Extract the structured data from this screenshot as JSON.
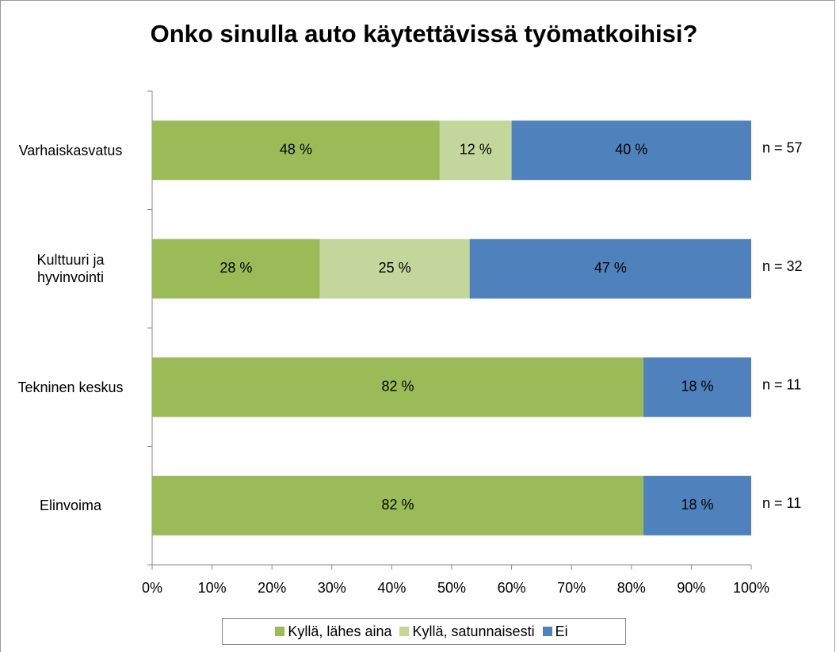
{
  "chart_data": {
    "type": "stacked_bar_horizontal",
    "title": "Onko sinulla auto käytettävissä työmatkoihisi?",
    "categories": [
      "Varhaiskasvatus",
      "Kulttuuri ja hyvinvointi",
      "Tekninen keskus",
      "Elinvoima"
    ],
    "series": [
      {
        "name": "Kyllä, lähes aina",
        "color": "#9bbb59",
        "values": [
          48,
          28,
          82,
          82
        ],
        "value_labels": [
          "48 %",
          "28 %",
          "82 %",
          "82 %"
        ]
      },
      {
        "name": "Kyllä, satunnaisesti",
        "color": "#c3d69b",
        "values": [
          12,
          25,
          0,
          0
        ],
        "value_labels": [
          "12 %",
          "25 %",
          null,
          null
        ]
      },
      {
        "name": "Ei",
        "color": "#4f81bd",
        "values": [
          40,
          47,
          18,
          18
        ],
        "value_labels": [
          "40 %",
          "47 %",
          "18 %",
          "18 %"
        ]
      }
    ],
    "annotations": [
      "n = 57",
      "n = 32",
      "n = 11",
      "n = 11"
    ],
    "xlim": [
      0,
      100
    ],
    "xticks": [
      {
        "value": 0,
        "label": "0%"
      },
      {
        "value": 10,
        "label": "10%"
      },
      {
        "value": 20,
        "label": "20%"
      },
      {
        "value": 30,
        "label": "30%"
      },
      {
        "value": 40,
        "label": "40%"
      },
      {
        "value": 50,
        "label": "50%"
      },
      {
        "value": 60,
        "label": "60%"
      },
      {
        "value": 70,
        "label": "70%"
      },
      {
        "value": 80,
        "label": "80%"
      },
      {
        "value": 90,
        "label": "90%"
      },
      {
        "value": 100,
        "label": "100%"
      }
    ],
    "legend": "bottom"
  }
}
